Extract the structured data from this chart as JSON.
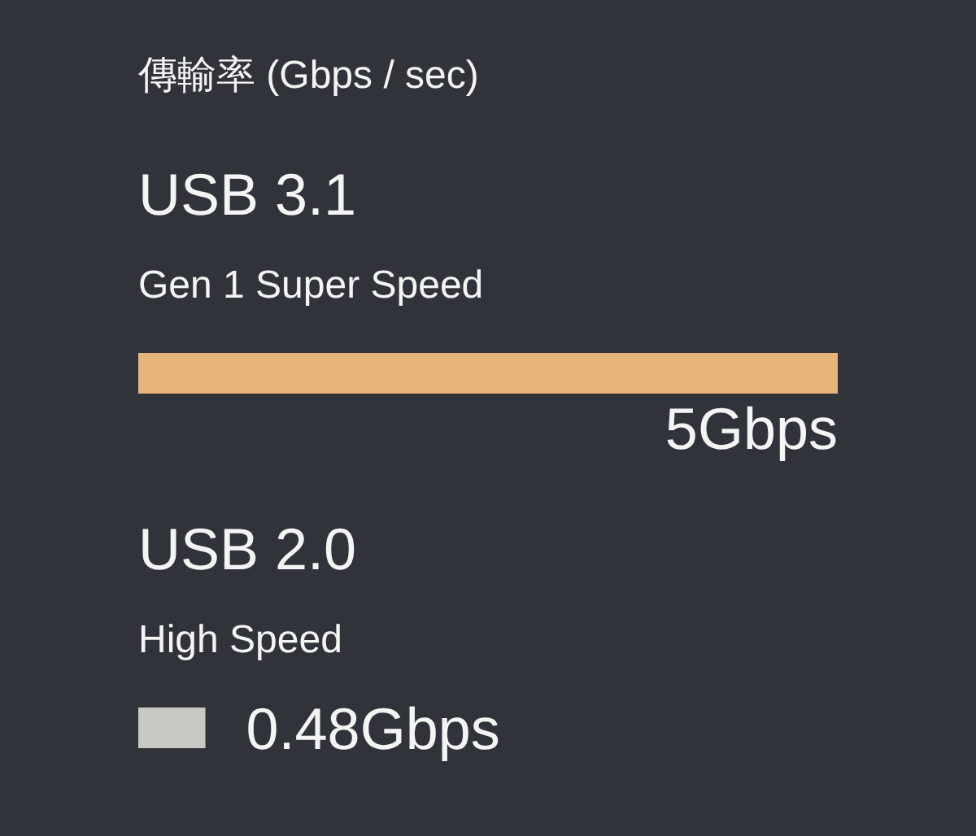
{
  "chart_data": {
    "type": "bar",
    "orientation": "horizontal",
    "title": "傳輸率 (Gbps / sec)",
    "categories": [
      "USB 3.1",
      "USB 2.0"
    ],
    "values": [
      5,
      0.48
    ],
    "value_labels": [
      "5Gbps",
      "0.48Gbps"
    ],
    "colors": [
      "#e8b47c",
      "#c8c8c4"
    ],
    "annotations": [
      "Gen 1 Super Speed",
      "High Speed"
    ]
  }
}
